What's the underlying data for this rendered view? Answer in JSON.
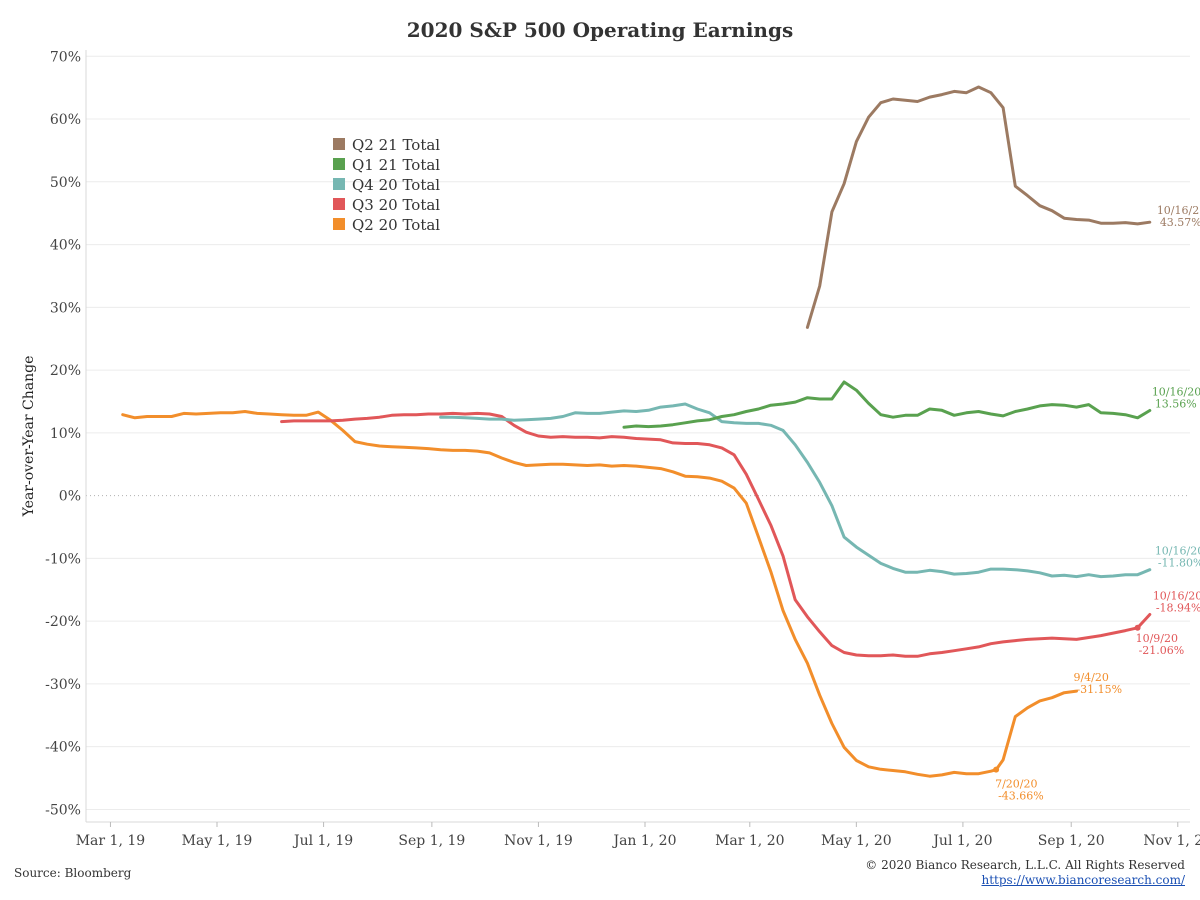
{
  "footer": {
    "source": "Source: Bloomberg",
    "copyright": "© 2020 Bianco Research, L.L.C. All Rights Reserved",
    "url": "https://www.biancoresearch.com/"
  },
  "chart_data": {
    "type": "line",
    "title": "2020 S&P 500 Operating Earnings",
    "ylabel": "Year-over-Year Change",
    "xlabel": "",
    "ylim": [
      -52,
      71
    ],
    "x_range": [
      "2019-02-15",
      "2020-11-08"
    ],
    "y_ticks": [
      70,
      60,
      50,
      40,
      30,
      20,
      10,
      0,
      -10,
      -20,
      -30,
      -40,
      -50
    ],
    "y_tick_labels": [
      "70%",
      "60%",
      "50%",
      "40%",
      "30%",
      "20%",
      "10%",
      "0%",
      "-10%",
      "-20%",
      "-30%",
      "-40%",
      "-50%"
    ],
    "x_ticks": [
      "2019-03-01",
      "2019-05-01",
      "2019-07-01",
      "2019-09-01",
      "2019-11-01",
      "2020-01-01",
      "2020-03-01",
      "2020-05-01",
      "2020-07-01",
      "2020-09-01",
      "2020-11-01"
    ],
    "x_tick_labels": [
      "Mar 1, 19",
      "May 1, 19",
      "Jul 1, 19",
      "Sep 1, 19",
      "Nov 1, 19",
      "Jan 1, 20",
      "Mar 1, 20",
      "May 1, 20",
      "Jul 1, 20",
      "Sep 1, 20",
      "Nov 1, 20"
    ],
    "zero_line": true,
    "grid": true,
    "legend_placement": "upper-left",
    "series": [
      {
        "name": "Q2 21 Total",
        "color": "#9c7a62",
        "x": [
          "2020-04-03",
          "2020-04-10",
          "2020-04-17",
          "2020-04-24",
          "2020-05-01",
          "2020-05-08",
          "2020-05-15",
          "2020-05-22",
          "2020-05-29",
          "2020-06-05",
          "2020-06-12",
          "2020-06-19",
          "2020-06-26",
          "2020-07-03",
          "2020-07-10",
          "2020-07-17",
          "2020-07-24",
          "2020-07-31",
          "2020-08-07",
          "2020-08-14",
          "2020-08-21",
          "2020-08-28",
          "2020-09-04",
          "2020-09-11",
          "2020-09-18",
          "2020-09-25",
          "2020-10-02",
          "2020-10-09",
          "2020-10-16"
        ],
        "values": [
          26.8,
          33.4,
          45.2,
          49.7,
          56.4,
          60.3,
          62.6,
          63.2,
          63.0,
          62.8,
          63.5,
          63.9,
          64.4,
          64.2,
          65.1,
          64.2,
          61.8,
          49.3,
          47.8,
          46.2,
          45.4,
          44.2,
          44.0,
          43.9,
          43.4,
          43.4,
          43.5,
          43.3,
          43.57
        ]
      },
      {
        "name": "Q1 21 Total",
        "color": "#59a14f",
        "x": [
          "2019-12-20",
          "2019-12-27",
          "2020-01-03",
          "2020-01-10",
          "2020-01-17",
          "2020-01-24",
          "2020-01-31",
          "2020-02-07",
          "2020-02-14",
          "2020-02-21",
          "2020-02-28",
          "2020-03-06",
          "2020-03-13",
          "2020-03-20",
          "2020-03-27",
          "2020-04-03",
          "2020-04-10",
          "2020-04-17",
          "2020-04-24",
          "2020-05-01",
          "2020-05-08",
          "2020-05-15",
          "2020-05-22",
          "2020-05-29",
          "2020-06-05",
          "2020-06-12",
          "2020-06-19",
          "2020-06-26",
          "2020-07-03",
          "2020-07-10",
          "2020-07-17",
          "2020-07-24",
          "2020-07-31",
          "2020-08-07",
          "2020-08-14",
          "2020-08-21",
          "2020-08-28",
          "2020-09-04",
          "2020-09-11",
          "2020-09-18",
          "2020-09-25",
          "2020-10-02",
          "2020-10-09",
          "2020-10-16"
        ],
        "values": [
          10.9,
          11.1,
          11.0,
          11.1,
          11.3,
          11.6,
          11.9,
          12.1,
          12.6,
          12.9,
          13.4,
          13.8,
          14.4,
          14.6,
          14.9,
          15.6,
          15.4,
          15.4,
          18.1,
          16.8,
          14.7,
          12.9,
          12.5,
          12.8,
          12.8,
          13.8,
          13.6,
          12.8,
          13.2,
          13.4,
          13.0,
          12.7,
          13.4,
          13.8,
          14.3,
          14.5,
          14.4,
          14.1,
          14.5,
          13.2,
          13.1,
          12.9,
          12.4,
          13.56
        ]
      },
      {
        "name": "Q4 20 Total",
        "color": "#76b7b2",
        "x": [
          "2019-09-06",
          "2019-09-13",
          "2019-09-20",
          "2019-09-27",
          "2019-10-04",
          "2019-10-11",
          "2019-10-18",
          "2019-10-25",
          "2019-11-01",
          "2019-11-08",
          "2019-11-15",
          "2019-11-22",
          "2019-11-29",
          "2019-12-06",
          "2019-12-13",
          "2019-12-20",
          "2019-12-27",
          "2020-01-03",
          "2020-01-10",
          "2020-01-17",
          "2020-01-24",
          "2020-01-31",
          "2020-02-07",
          "2020-02-14",
          "2020-02-21",
          "2020-02-28",
          "2020-03-06",
          "2020-03-13",
          "2020-03-20",
          "2020-03-27",
          "2020-04-03",
          "2020-04-10",
          "2020-04-17",
          "2020-04-24",
          "2020-05-01",
          "2020-05-08",
          "2020-05-15",
          "2020-05-22",
          "2020-05-29",
          "2020-06-05",
          "2020-06-12",
          "2020-06-19",
          "2020-06-26",
          "2020-07-03",
          "2020-07-10",
          "2020-07-17",
          "2020-07-24",
          "2020-07-31",
          "2020-08-07",
          "2020-08-14",
          "2020-08-21",
          "2020-08-28",
          "2020-09-04",
          "2020-09-11",
          "2020-09-18",
          "2020-09-25",
          "2020-10-02",
          "2020-10-09",
          "2020-10-16"
        ],
        "values": [
          12.5,
          12.5,
          12.4,
          12.3,
          12.2,
          12.2,
          12.0,
          12.1,
          12.2,
          12.3,
          12.6,
          13.2,
          13.1,
          13.1,
          13.3,
          13.5,
          13.4,
          13.6,
          14.1,
          14.3,
          14.6,
          13.8,
          13.2,
          11.8,
          11.6,
          11.5,
          11.5,
          11.2,
          10.4,
          8.1,
          5.3,
          2.1,
          -1.6,
          -6.6,
          -8.2,
          -9.5,
          -10.8,
          -11.6,
          -12.2,
          -12.2,
          -11.9,
          -12.1,
          -12.5,
          -12.4,
          -12.2,
          -11.7,
          -11.7,
          -11.8,
          -12.0,
          -12.3,
          -12.8,
          -12.7,
          -12.9,
          -12.6,
          -12.9,
          -12.8,
          -12.6,
          -12.6,
          -11.8
        ]
      },
      {
        "name": "Q3 20 Total",
        "color": "#e15759",
        "x": [
          "2019-06-07",
          "2019-06-14",
          "2019-06-21",
          "2019-06-28",
          "2019-07-05",
          "2019-07-12",
          "2019-07-19",
          "2019-07-26",
          "2019-08-02",
          "2019-08-09",
          "2019-08-16",
          "2019-08-23",
          "2019-08-30",
          "2019-09-06",
          "2019-09-13",
          "2019-09-20",
          "2019-09-27",
          "2019-10-04",
          "2019-10-11",
          "2019-10-18",
          "2019-10-25",
          "2019-11-01",
          "2019-11-08",
          "2019-11-15",
          "2019-11-22",
          "2019-11-29",
          "2019-12-06",
          "2019-12-13",
          "2019-12-20",
          "2019-12-27",
          "2020-01-03",
          "2020-01-10",
          "2020-01-17",
          "2020-01-24",
          "2020-01-31",
          "2020-02-07",
          "2020-02-14",
          "2020-02-21",
          "2020-02-28",
          "2020-03-06",
          "2020-03-13",
          "2020-03-20",
          "2020-03-27",
          "2020-04-03",
          "2020-04-10",
          "2020-04-17",
          "2020-04-24",
          "2020-05-01",
          "2020-05-08",
          "2020-05-15",
          "2020-05-22",
          "2020-05-29",
          "2020-06-05",
          "2020-06-12",
          "2020-06-19",
          "2020-06-26",
          "2020-07-03",
          "2020-07-10",
          "2020-07-17",
          "2020-07-24",
          "2020-07-31",
          "2020-08-07",
          "2020-08-14",
          "2020-08-21",
          "2020-08-28",
          "2020-09-04",
          "2020-09-11",
          "2020-09-18",
          "2020-09-25",
          "2020-10-02",
          "2020-10-09",
          "2020-10-16"
        ],
        "values": [
          11.8,
          11.9,
          11.9,
          11.9,
          11.9,
          12.0,
          12.2,
          12.3,
          12.5,
          12.8,
          12.9,
          12.9,
          13.0,
          13.0,
          13.1,
          13.0,
          13.1,
          13.0,
          12.6,
          11.2,
          10.1,
          9.5,
          9.3,
          9.4,
          9.3,
          9.3,
          9.2,
          9.4,
          9.3,
          9.1,
          9.0,
          8.9,
          8.4,
          8.3,
          8.3,
          8.1,
          7.6,
          6.5,
          3.4,
          -0.6,
          -4.7,
          -9.6,
          -16.6,
          -19.3,
          -21.7,
          -23.9,
          -25.0,
          -25.4,
          -25.5,
          -25.5,
          -25.4,
          -25.6,
          -25.6,
          -25.2,
          -25.0,
          -24.7,
          -24.4,
          -24.1,
          -23.6,
          -23.3,
          -23.1,
          -22.9,
          -22.8,
          -22.7,
          -22.8,
          -22.9,
          -22.6,
          -22.3,
          -21.9,
          -21.5,
          -21.06,
          -18.94
        ]
      },
      {
        "name": "Q2 20 Total",
        "color": "#f28e2b",
        "x": [
          "2019-03-08",
          "2019-03-15",
          "2019-03-22",
          "2019-03-29",
          "2019-04-05",
          "2019-04-12",
          "2019-04-19",
          "2019-04-26",
          "2019-05-03",
          "2019-05-10",
          "2019-05-17",
          "2019-05-24",
          "2019-05-31",
          "2019-06-07",
          "2019-06-14",
          "2019-06-21",
          "2019-06-28",
          "2019-07-05",
          "2019-07-12",
          "2019-07-19",
          "2019-07-26",
          "2019-08-02",
          "2019-08-09",
          "2019-08-16",
          "2019-08-23",
          "2019-08-30",
          "2019-09-06",
          "2019-09-13",
          "2019-09-20",
          "2019-09-27",
          "2019-10-04",
          "2019-10-11",
          "2019-10-18",
          "2019-10-25",
          "2019-11-01",
          "2019-11-08",
          "2019-11-15",
          "2019-11-22",
          "2019-11-29",
          "2019-12-06",
          "2019-12-13",
          "2019-12-20",
          "2019-12-27",
          "2020-01-03",
          "2020-01-10",
          "2020-01-17",
          "2020-01-24",
          "2020-01-31",
          "2020-02-07",
          "2020-02-14",
          "2020-02-21",
          "2020-02-28",
          "2020-03-06",
          "2020-03-13",
          "2020-03-20",
          "2020-03-27",
          "2020-04-03",
          "2020-04-10",
          "2020-04-17",
          "2020-04-24",
          "2020-05-01",
          "2020-05-08",
          "2020-05-15",
          "2020-05-22",
          "2020-05-29",
          "2020-06-05",
          "2020-06-12",
          "2020-06-19",
          "2020-06-26",
          "2020-07-03",
          "2020-07-10",
          "2020-07-17",
          "2020-07-20",
          "2020-07-24",
          "2020-07-31",
          "2020-08-07",
          "2020-08-14",
          "2020-08-21",
          "2020-08-28",
          "2020-09-04"
        ],
        "values": [
          12.9,
          12.4,
          12.6,
          12.6,
          12.6,
          13.1,
          13.0,
          13.1,
          13.2,
          13.2,
          13.4,
          13.1,
          13.0,
          12.9,
          12.8,
          12.8,
          13.3,
          12.0,
          10.4,
          8.6,
          8.2,
          7.9,
          7.8,
          7.7,
          7.6,
          7.5,
          7.3,
          7.2,
          7.2,
          7.1,
          6.8,
          6.0,
          5.3,
          4.8,
          4.9,
          5.0,
          5.0,
          4.9,
          4.8,
          4.9,
          4.7,
          4.8,
          4.7,
          4.5,
          4.3,
          3.8,
          3.1,
          3.0,
          2.8,
          2.3,
          1.2,
          -1.2,
          -6.6,
          -12.1,
          -18.3,
          -22.9,
          -26.7,
          -31.8,
          -36.3,
          -40.1,
          -42.2,
          -43.2,
          -43.6,
          -43.8,
          -44.0,
          -44.4,
          -44.7,
          -44.5,
          -44.1,
          -44.3,
          -44.3,
          -43.9,
          -43.66,
          -42.1,
          -35.2,
          -33.8,
          -32.7,
          -32.2,
          -31.4,
          -31.15
        ]
      }
    ],
    "annotations": [
      {
        "series": "Q2 21 Total",
        "date": "10/16/20",
        "value": "43.57%"
      },
      {
        "series": "Q1 21 Total",
        "date": "10/16/20",
        "value": "13.56%"
      },
      {
        "series": "Q4 20 Total",
        "date": "10/16/20",
        "value": "-11.80%"
      },
      {
        "series": "Q3 20 Total",
        "date": "10/16/20",
        "value": "-18.94%"
      },
      {
        "series": "Q3 20 Total",
        "date": "10/9/20",
        "value": "-21.06%"
      },
      {
        "series": "Q2 20 Total",
        "date": "9/4/20",
        "value": "-31.15%"
      },
      {
        "series": "Q2 20 Total",
        "date": "7/20/20",
        "value": "-43.66%"
      }
    ]
  }
}
